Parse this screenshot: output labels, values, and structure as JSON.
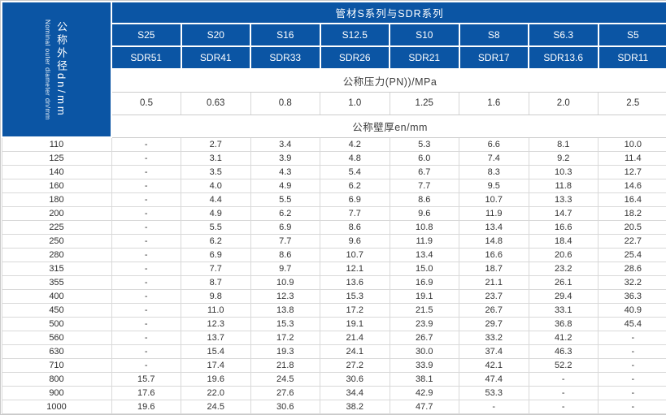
{
  "title": "管材S系列与SDR系列",
  "corner": {
    "zh": "公称外径dn/mm",
    "en": "Nominal outer diameter dn/mm"
  },
  "series_row": [
    "S25",
    "S20",
    "S16",
    "S12.5",
    "S10",
    "S8",
    "S6.3",
    "S5"
  ],
  "sdr_row": [
    "SDR51",
    "SDR41",
    "SDR33",
    "SDR26",
    "SDR21",
    "SDR17",
    "SDR13.6",
    "SDR11"
  ],
  "pressure_label": "公称压力(PN))/MPa",
  "pressure_values": [
    "0.5",
    "0.63",
    "0.8",
    "1.0",
    "1.25",
    "1.6",
    "2.0",
    "2.5"
  ],
  "thickness_label": "公称壁厚en/mm",
  "colors": {
    "header_blue": "#0b55a4",
    "border_light": "#cccccc",
    "text_dark": "#333333"
  },
  "table": {
    "rows": [
      {
        "dn": "110",
        "values": [
          "-",
          "2.7",
          "3.4",
          "4.2",
          "5.3",
          "6.6",
          "8.1",
          "10.0"
        ]
      },
      {
        "dn": "125",
        "values": [
          "-",
          "3.1",
          "3.9",
          "4.8",
          "6.0",
          "7.4",
          "9.2",
          "11.4"
        ]
      },
      {
        "dn": "140",
        "values": [
          "-",
          "3.5",
          "4.3",
          "5.4",
          "6.7",
          "8.3",
          "10.3",
          "12.7"
        ]
      },
      {
        "dn": "160",
        "values": [
          "-",
          "4.0",
          "4.9",
          "6.2",
          "7.7",
          "9.5",
          "11.8",
          "14.6"
        ]
      },
      {
        "dn": "180",
        "values": [
          "-",
          "4.4",
          "5.5",
          "6.9",
          "8.6",
          "10.7",
          "13.3",
          "16.4"
        ]
      },
      {
        "dn": "200",
        "values": [
          "-",
          "4.9",
          "6.2",
          "7.7",
          "9.6",
          "11.9",
          "14.7",
          "18.2"
        ]
      },
      {
        "dn": "225",
        "values": [
          "-",
          "5.5",
          "6.9",
          "8.6",
          "10.8",
          "13.4",
          "16.6",
          "20.5"
        ]
      },
      {
        "dn": "250",
        "values": [
          "-",
          "6.2",
          "7.7",
          "9.6",
          "11.9",
          "14.8",
          "18.4",
          "22.7"
        ]
      },
      {
        "dn": "280",
        "values": [
          "-",
          "6.9",
          "8.6",
          "10.7",
          "13.4",
          "16.6",
          "20.6",
          "25.4"
        ]
      },
      {
        "dn": "315",
        "values": [
          "-",
          "7.7",
          "9.7",
          "12.1",
          "15.0",
          "18.7",
          "23.2",
          "28.6"
        ]
      },
      {
        "dn": "355",
        "values": [
          "-",
          "8.7",
          "10.9",
          "13.6",
          "16.9",
          "21.1",
          "26.1",
          "32.2"
        ]
      },
      {
        "dn": "400",
        "values": [
          "-",
          "9.8",
          "12.3",
          "15.3",
          "19.1",
          "23.7",
          "29.4",
          "36.3"
        ]
      },
      {
        "dn": "450",
        "values": [
          "-",
          "11.0",
          "13.8",
          "17.2",
          "21.5",
          "26.7",
          "33.1",
          "40.9"
        ]
      },
      {
        "dn": "500",
        "values": [
          "-",
          "12.3",
          "15.3",
          "19.1",
          "23.9",
          "29.7",
          "36.8",
          "45.4"
        ]
      },
      {
        "dn": "560",
        "values": [
          "-",
          "13.7",
          "17.2",
          "21.4",
          "26.7",
          "33.2",
          "41.2",
          "-"
        ]
      },
      {
        "dn": "630",
        "values": [
          "-",
          "15.4",
          "19.3",
          "24.1",
          "30.0",
          "37.4",
          "46.3",
          "-"
        ]
      },
      {
        "dn": "710",
        "values": [
          "-",
          "17.4",
          "21.8",
          "27.2",
          "33.9",
          "42.1",
          "52.2",
          "-"
        ]
      },
      {
        "dn": "800",
        "values": [
          "15.7",
          "19.6",
          "24.5",
          "30.6",
          "38.1",
          "47.4",
          "-",
          "-"
        ]
      },
      {
        "dn": "900",
        "values": [
          "17.6",
          "22.0",
          "27.6",
          "34.4",
          "42.9",
          "53.3",
          "-",
          "-"
        ]
      },
      {
        "dn": "1000",
        "values": [
          "19.6",
          "24.5",
          "30.6",
          "38.2",
          "47.7",
          "-",
          "-",
          "-"
        ]
      }
    ]
  }
}
